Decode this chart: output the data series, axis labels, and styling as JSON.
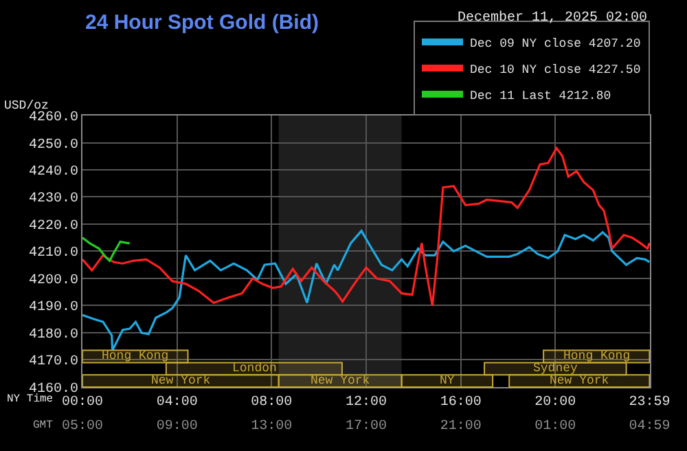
{
  "chart_data": {
    "type": "line",
    "title": "24 Hour Spot Gold (Bid)",
    "subtitle": "December 11, 2025 02:00",
    "ylabel": "USD/oz",
    "xlabel": "NY Time",
    "x2label": "GMT",
    "xlim": [
      0,
      24
    ],
    "xticks": [
      {
        "value": 0,
        "label": "00:00"
      },
      {
        "value": 4,
        "label": "04:00"
      },
      {
        "value": 8,
        "label": "08:00"
      },
      {
        "value": 12,
        "label": "12:00"
      },
      {
        "value": 16,
        "label": "16:00"
      },
      {
        "value": 20,
        "label": "20:00"
      },
      {
        "value": 23.983,
        "label": "23:59"
      }
    ],
    "x2lim": [
      "2025-12-11T05:00",
      "2025-12-12T05:00"
    ],
    "x2ticks": [
      {
        "value": "2025-12-11T05:00",
        "label": "05:00"
      },
      {
        "value": "2025-12-11T09:00",
        "label": "09:00"
      },
      {
        "value": "2025-12-11T13:00",
        "label": "13:00"
      },
      {
        "value": "2025-12-11T17:00",
        "label": "17:00"
      },
      {
        "value": "2025-12-11T21:00",
        "label": "21:00"
      },
      {
        "value": "2025-12-12T01:00",
        "label": "01:00"
      },
      {
        "value": "2025-12-12T04:59",
        "label": "04:59"
      }
    ],
    "ylim": [
      4160,
      4260
    ],
    "yticks": [
      {
        "value": 4160,
        "label": "4160.0"
      },
      {
        "value": 4170,
        "label": "4170.0"
      },
      {
        "value": 4180,
        "label": "4180.0"
      },
      {
        "value": 4190,
        "label": "4190.0"
      },
      {
        "value": 4200,
        "label": "4200.0"
      },
      {
        "value": 4210,
        "label": "4210.0"
      },
      {
        "value": 4220,
        "label": "4220.0"
      },
      {
        "value": 4230,
        "label": "4230.0"
      },
      {
        "value": 4240,
        "label": "4240.0"
      },
      {
        "value": 4250,
        "label": "4250.0"
      },
      {
        "value": 4260,
        "label": "4260.0"
      }
    ],
    "grid": true,
    "legend": "top right",
    "marker": "none",
    "line_style": "solid",
    "bands": [
      {
        "axis": "x",
        "from": 8.3,
        "to": 13.5,
        "color": "#1e1e1e"
      },
      {
        "axis": "x",
        "from": 0,
        "to": 8.3,
        "label": "New York",
        "color": "#c8a838"
      },
      {
        "axis": "x",
        "from": 8.3,
        "to": 13.5,
        "label": "New York",
        "color": "#c8a838"
      },
      {
        "axis": "x",
        "from": 13.5,
        "to": 17.35,
        "label": "NY",
        "color": "#c8a838"
      },
      {
        "axis": "x",
        "from": 3.54,
        "to": 10.98,
        "label": "London",
        "color": "#c8a838"
      },
      {
        "axis": "x",
        "from": 0,
        "to": 4.46,
        "label": "Hong Kong",
        "color": "#c8a838"
      },
      {
        "axis": "x",
        "from": 17.0,
        "to": 23.0,
        "label": "Sydney",
        "color": "#c8a838"
      },
      {
        "axis": "x",
        "from": 18.05,
        "to": 23.983,
        "label": "New York",
        "color": "#c8a838"
      },
      {
        "axis": "x",
        "from": 19.5,
        "to": 23.983,
        "label": "Hong Kong",
        "color": "#c8a838"
      }
    ],
    "series": [
      {
        "name": "Dec 09 NY close 4207.20",
        "color": "#1fa9e0",
        "x": [
          0,
          0.5,
          0.87,
          1.24,
          1.27,
          1.7,
          2.0,
          2.25,
          2.5,
          2.8,
          3.1,
          3.55,
          3.8,
          4.1,
          4.37,
          4.75,
          5.4,
          5.85,
          6.4,
          6.95,
          7.4,
          7.7,
          8.15,
          8.6,
          9.05,
          9.5,
          9.9,
          10.3,
          10.65,
          10.8,
          11.35,
          11.8,
          12.2,
          12.65,
          13.1,
          13.5,
          13.75,
          14.2,
          14.5,
          14.9,
          15.25,
          15.7,
          16.2,
          16.75,
          17.1,
          18.05,
          18.4,
          18.9,
          19.25,
          19.7,
          20.1,
          20.4,
          20.85,
          21.2,
          21.6,
          22.0,
          22.25,
          22.4,
          23.0,
          23.45,
          23.8,
          23.98
        ],
        "values": [
          4186.5,
          4185,
          4184,
          4179,
          4173.5,
          4181,
          4181.5,
          4184,
          4180,
          4179.5,
          4185.5,
          4187.5,
          4189,
          4193,
          4208.5,
          4203,
          4206.5,
          4203,
          4205.5,
          4203,
          4199.5,
          4205,
          4205.5,
          4198,
          4201.5,
          4191,
          4205.5,
          4198,
          4205,
          4203,
          4213,
          4217.5,
          4211.5,
          4205,
          4203,
          4207,
          4204.5,
          4211,
          4208.5,
          4208.5,
          4213.5,
          4210,
          4212,
          4209.5,
          4208,
          4208,
          4209,
          4211.5,
          4209,
          4207.5,
          4210,
          4216,
          4214.5,
          4216,
          4214,
          4217,
          4215,
          4210,
          4205,
          4207.5,
          4207,
          4206
        ]
      },
      {
        "name": "Dec 10 NY close 4227.50",
        "color": "#ff2020",
        "x": [
          0,
          0.4,
          0.87,
          1.33,
          1.7,
          2.15,
          2.7,
          3.26,
          3.8,
          4.37,
          4.9,
          5.55,
          6.2,
          6.75,
          7.2,
          7.6,
          8.05,
          8.4,
          8.9,
          9.25,
          9.7,
          10.2,
          10.65,
          10.8,
          11.0,
          11.5,
          12.0,
          12.45,
          13.0,
          13.5,
          13.95,
          14.15,
          14.35,
          14.5,
          14.8,
          15.0,
          15.25,
          15.7,
          16.2,
          16.75,
          17.1,
          18.15,
          18.4,
          18.9,
          19.35,
          19.7,
          20.05,
          20.3,
          20.55,
          20.9,
          21.2,
          21.6,
          21.85,
          22.05,
          22.25,
          22.4,
          22.9,
          23.25,
          23.6,
          23.9,
          23.98
        ],
        "values": [
          4207,
          4203,
          4208.5,
          4206,
          4205.5,
          4206.5,
          4207,
          4204,
          4199,
          4198,
          4195.5,
          4191,
          4193,
          4194.5,
          4200,
          4198,
          4196.5,
          4197,
          4203.5,
          4199,
          4204,
          4199,
          4195.5,
          4194,
          4191.5,
          4198,
          4204,
          4200,
          4199,
          4194.5,
          4194,
          4204,
          4213,
          4204.5,
          4190,
          4206.5,
          4233.5,
          4234,
          4227,
          4227.5,
          4229,
          4228,
          4226,
          4232.5,
          4242,
          4242.5,
          4248,
          4245,
          4237.5,
          4239.5,
          4235.5,
          4232.5,
          4227,
          4225,
          4218,
          4211,
          4216,
          4215,
          4213,
          4211,
          4213
        ]
      },
      {
        "name": "Dec 11 Last 4212.80",
        "color": "#22cc22",
        "x": [
          0,
          0.3,
          0.7,
          0.97,
          1.15,
          1.33,
          1.6,
          1.9,
          2.0
        ],
        "values": [
          4215,
          4213,
          4211,
          4208,
          4206.5,
          4209.5,
          4213.5,
          4213,
          4213
        ]
      }
    ]
  }
}
